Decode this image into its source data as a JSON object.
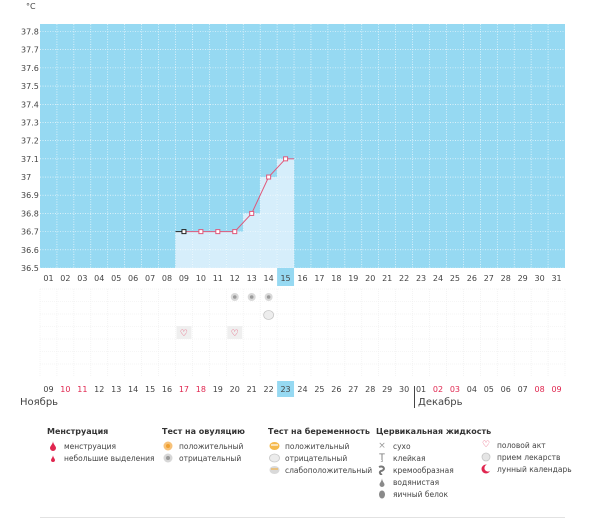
{
  "chart_data": {
    "type": "line",
    "unit": "°C",
    "ylim": [
      36.5,
      37.8
    ],
    "yticks": [
      "37.8",
      "37.7",
      "37.6",
      "37.5",
      "37.4",
      "37.3",
      "37.2",
      "37.1",
      "37",
      "36.9",
      "36.8",
      "36.7",
      "36.6",
      "36.5"
    ],
    "x": [
      "01",
      "02",
      "03",
      "04",
      "05",
      "06",
      "07",
      "08",
      "09",
      "10",
      "11",
      "12",
      "13",
      "14",
      "15",
      "16",
      "17",
      "18",
      "19",
      "20",
      "21",
      "22",
      "23",
      "24",
      "25",
      "26",
      "27",
      "28",
      "29",
      "30",
      "31"
    ],
    "series": [
      {
        "x": [
          "09",
          "10",
          "11",
          "12",
          "13",
          "14",
          "15"
        ],
        "values": [
          36.7,
          36.7,
          36.7,
          36.7,
          36.8,
          37.0,
          37.1
        ]
      }
    ],
    "highlight_cycle_day": "15",
    "grid": true,
    "colors": {
      "band": "#96d9f2",
      "fill": "#d6eefb",
      "line": "#e0587a",
      "grid": "#ffffff"
    }
  },
  "markers": {
    "ovulation_negative_days": [
      "12",
      "13",
      "14"
    ],
    "pregnancy_negative_days": [
      "14"
    ],
    "intercourse_days": [
      "09",
      "12"
    ]
  },
  "dates": {
    "labels": [
      "09",
      "10",
      "11",
      "12",
      "13",
      "14",
      "15",
      "16",
      "17",
      "18",
      "19",
      "20",
      "21",
      "22",
      "23",
      "24",
      "25",
      "26",
      "27",
      "28",
      "29",
      "30",
      "01",
      "02",
      "03",
      "04",
      "05",
      "06",
      "07",
      "08",
      "09"
    ],
    "red_indices": [
      1,
      2,
      8,
      9,
      23,
      24,
      29,
      30
    ],
    "today_index": 14,
    "months": {
      "first": "Ноябрь",
      "second": "Декабрь"
    }
  },
  "legend": {
    "menstruation": {
      "title": "Менструация",
      "items": [
        "менструация",
        "небольшие выделения"
      ]
    },
    "ovulation": {
      "title": "Тест на овуляцию",
      "items": [
        "положительный",
        "отрицательный"
      ]
    },
    "pregnancy": {
      "title": "Тест на беременность",
      "items": [
        "положительный",
        "отрицательный",
        "слабоположительный"
      ]
    },
    "cervical": {
      "title": "Цервикальная жидкость",
      "items": [
        "сухо",
        "клейкая",
        "кремообразная",
        "водянистая",
        "яичный белок"
      ]
    },
    "other": {
      "items": [
        "половой акт",
        "прием лекарств",
        "лунный календарь"
      ]
    }
  }
}
